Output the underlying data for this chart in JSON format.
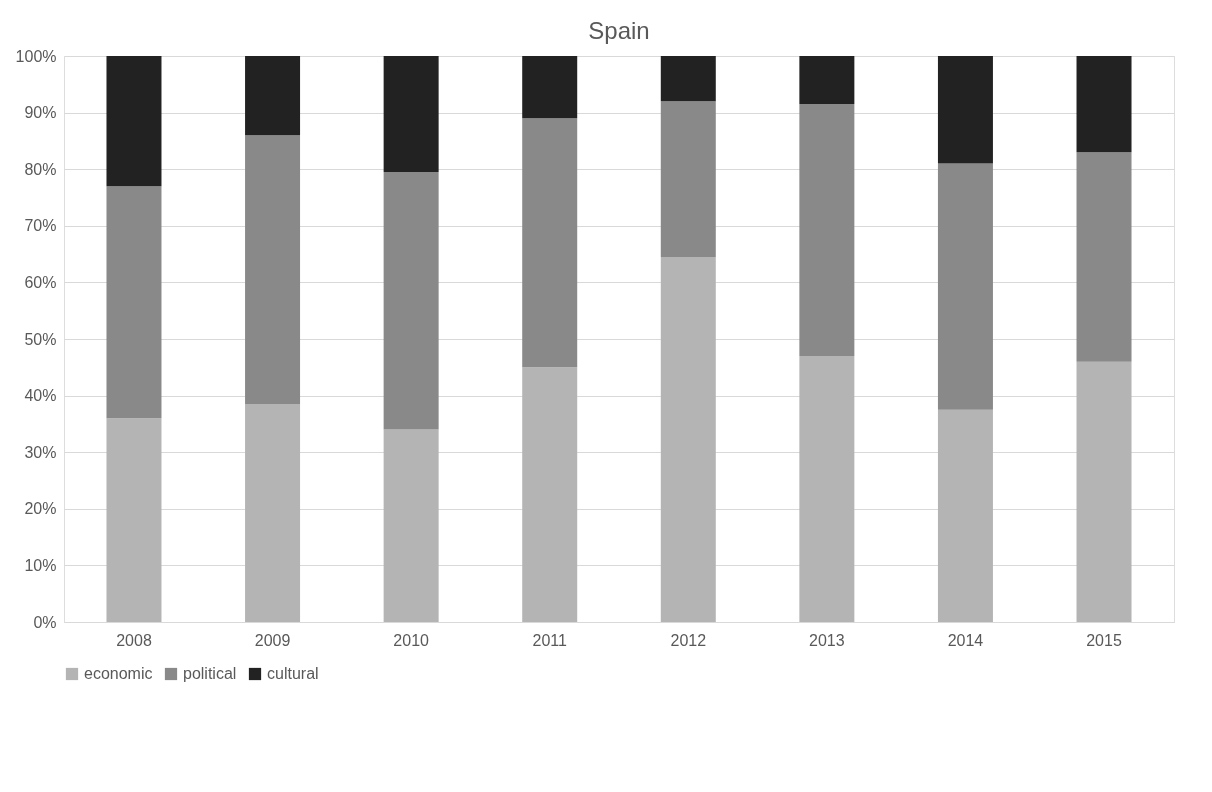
{
  "chart_data": {
    "type": "bar",
    "title": "Spain",
    "stacked": true,
    "categories": [
      "2008",
      "2009",
      "2010",
      "2011",
      "2012",
      "2013",
      "2014",
      "2015"
    ],
    "series": [
      {
        "name": "economic",
        "color": "#b4b4b4",
        "values": [
          36,
          38.5,
          34,
          45,
          64.5,
          47,
          37.5,
          46
        ]
      },
      {
        "name": "political",
        "color": "#898989",
        "values": [
          41,
          47.5,
          45.5,
          44,
          27.5,
          44.5,
          43.5,
          37
        ]
      },
      {
        "name": "cultural",
        "color": "#222222",
        "values": [
          23,
          14,
          20.5,
          11,
          8,
          8.5,
          19,
          17
        ]
      }
    ],
    "ylim": [
      0,
      100
    ],
    "yticks": [
      {
        "value": 0,
        "label": "0%"
      },
      {
        "value": 10,
        "label": "10%"
      },
      {
        "value": 20,
        "label": "20%"
      },
      {
        "value": 30,
        "label": "30%"
      },
      {
        "value": 40,
        "label": "40%"
      },
      {
        "value": 50,
        "label": "50%"
      },
      {
        "value": 60,
        "label": "60%"
      },
      {
        "value": 70,
        "label": "70%"
      },
      {
        "value": 80,
        "label": "80%"
      },
      {
        "value": 90,
        "label": "90%"
      },
      {
        "value": 100,
        "label": "100%"
      }
    ],
    "grid": "y",
    "legend": "bottom"
  }
}
